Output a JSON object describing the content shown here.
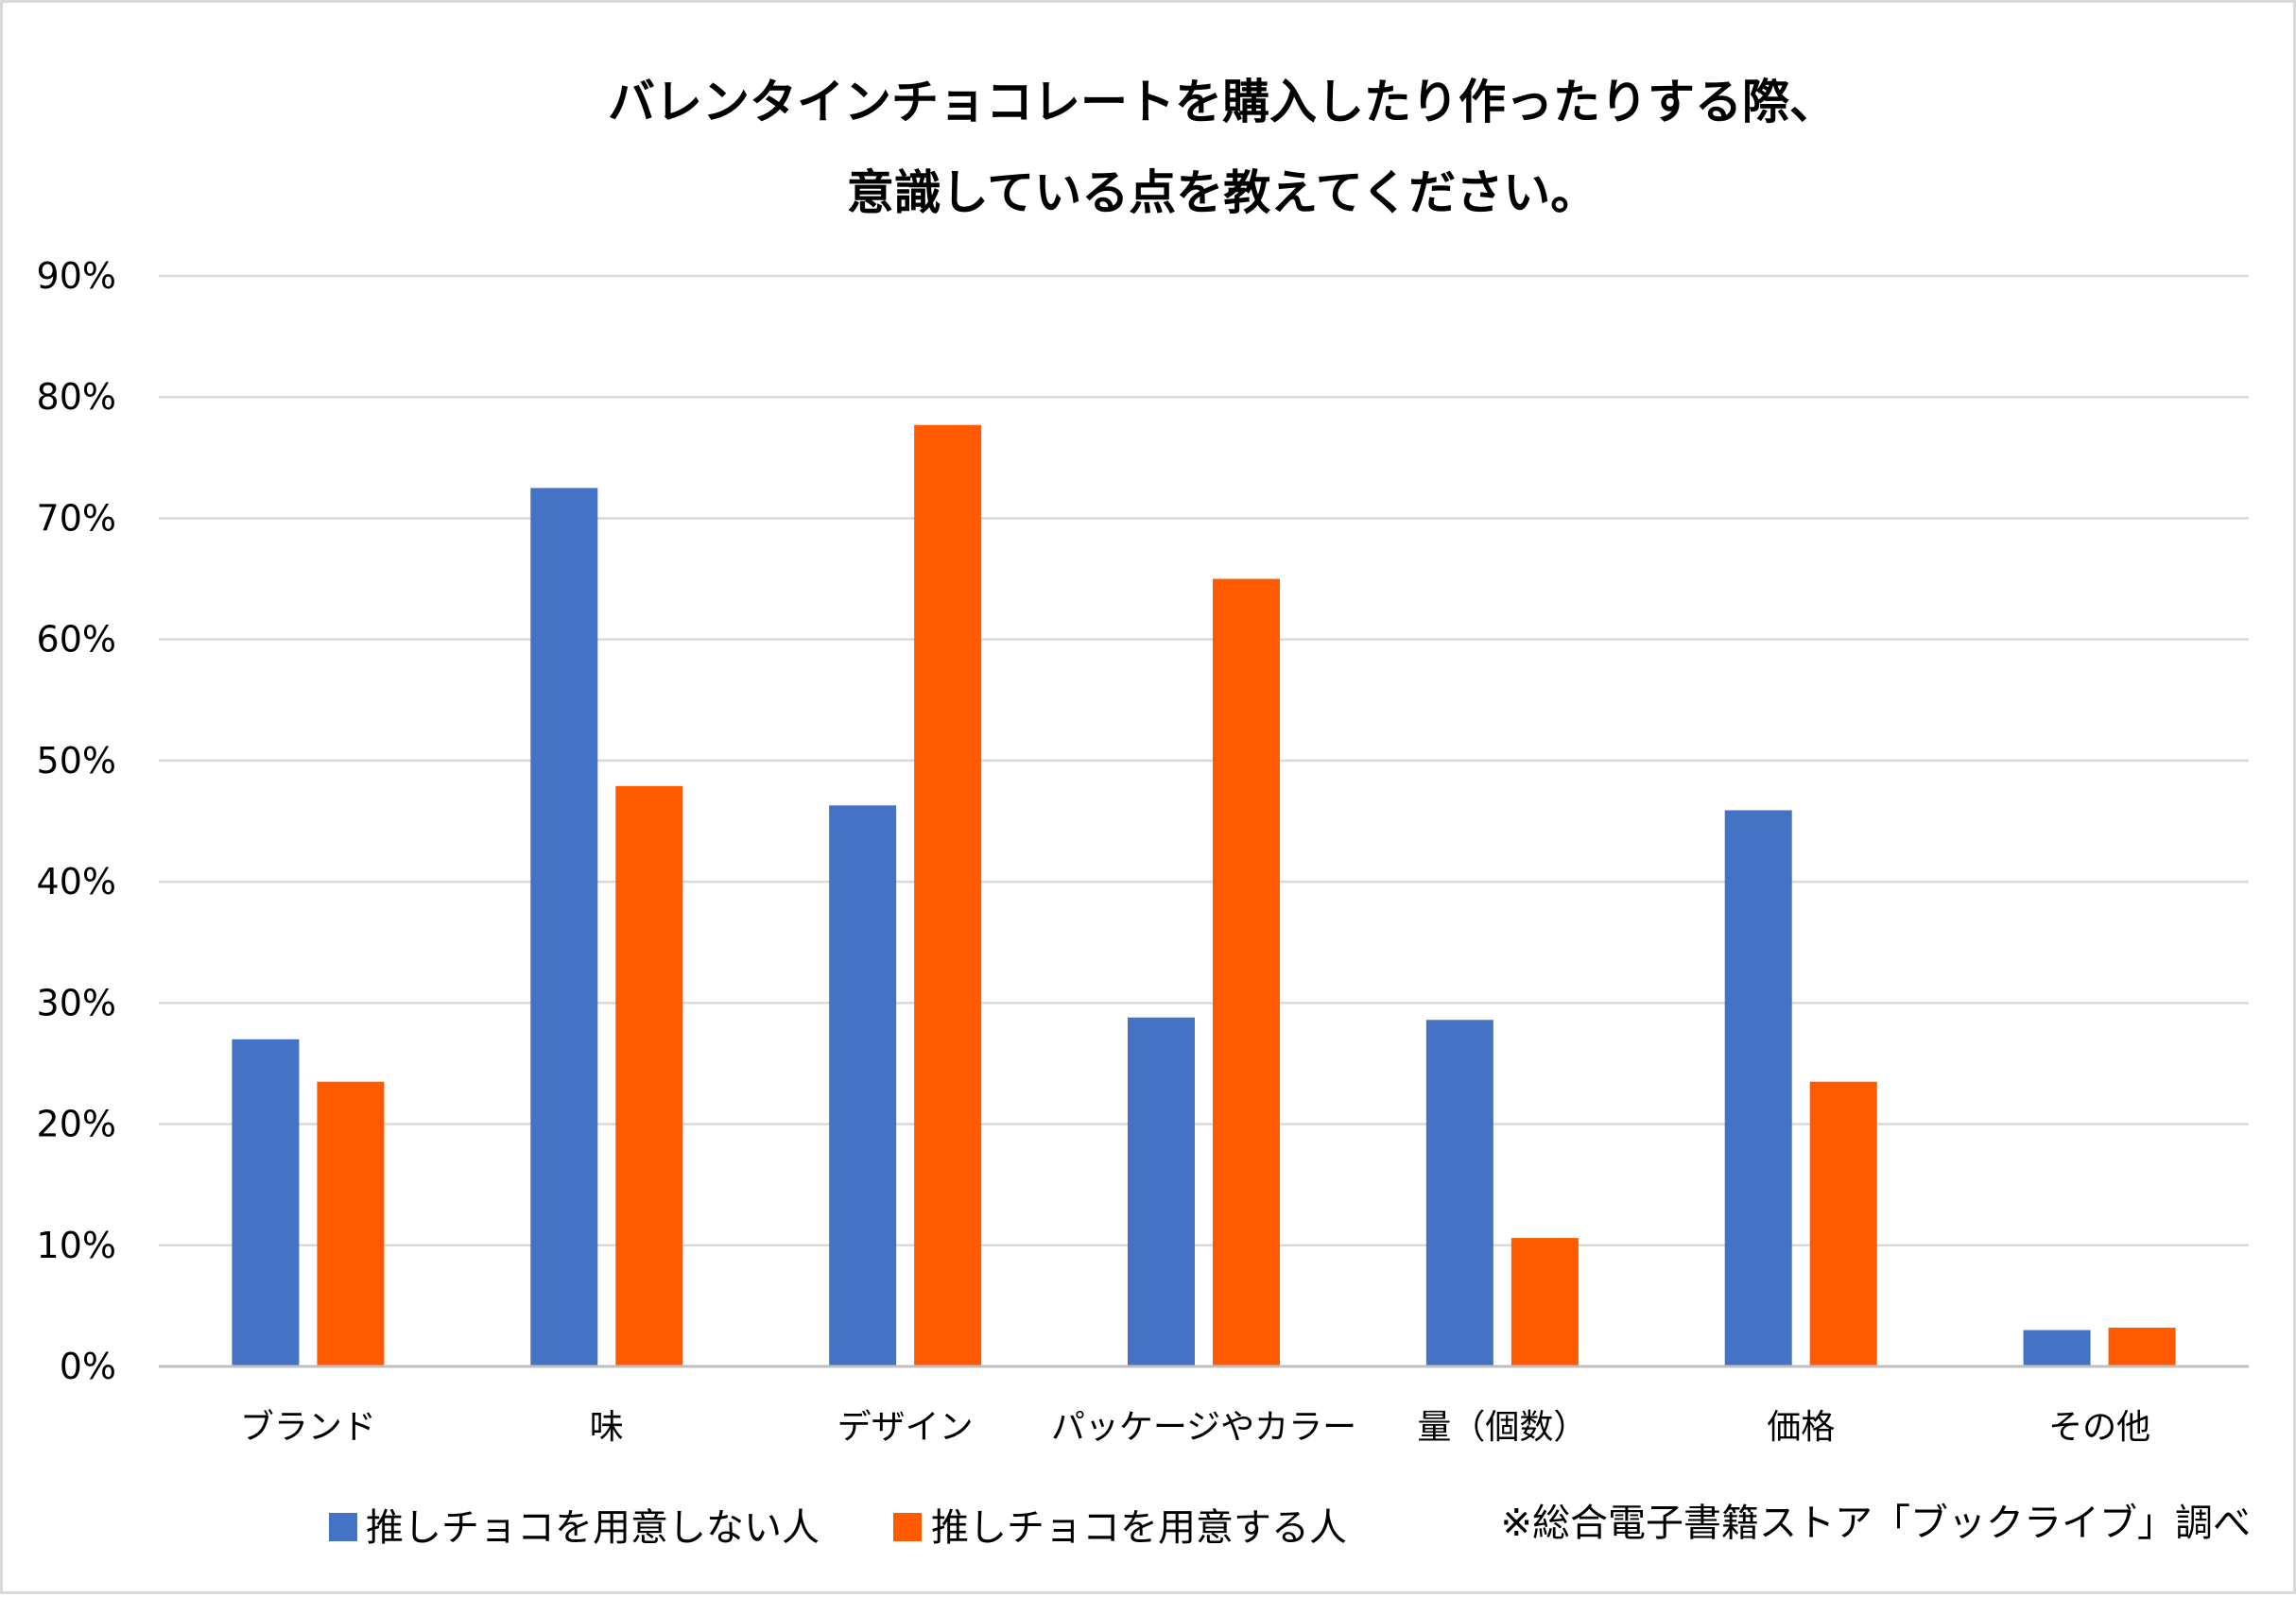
{
  "chart_data": {
    "type": "bar",
    "title_lines": [
      "バレンタインチョコレートを購入したり作ったりする際、",
      "意識している点を教えてください。"
    ],
    "categories": [
      "ブランド",
      "味",
      "デザイン",
      "パッケージやカラー",
      "量（個数）",
      "価格",
      "その他"
    ],
    "series": [
      {
        "name": "推しチョコを用意しない人",
        "color": "#4472c4",
        "values": [
          27,
          72.5,
          46.3,
          28.8,
          28.6,
          45.9,
          3.0
        ]
      },
      {
        "name": "推しチョコを用意する人",
        "color": "#ff5a00",
        "values": [
          23.5,
          47.9,
          77.7,
          65.0,
          10.6,
          23.5,
          3.2
        ]
      }
    ],
    "ylim": [
      0,
      90
    ],
    "yticks": [
      0,
      10,
      20,
      30,
      40,
      50,
      60,
      70,
      80,
      90
    ],
    "ytick_labels": [
      "0%",
      "10%",
      "20%",
      "30%",
      "40%",
      "50%",
      "60%",
      "70%",
      "80%",
      "90%"
    ],
    "grid": true,
    "legend_position": "bottom-left",
    "source_note": "※総合電子書籍ストア「ブックライブ」調べ"
  }
}
